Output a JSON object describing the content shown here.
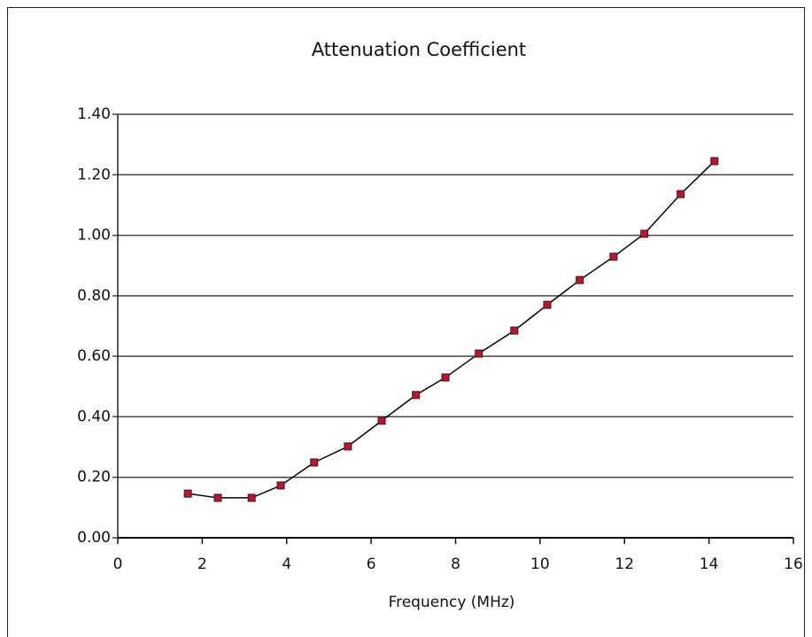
{
  "chart_data": {
    "type": "line",
    "title": "Attenuation Coefficient",
    "x_label": "Frequency (MHz)",
    "x": [
      1.66,
      2.37,
      3.17,
      3.86,
      4.65,
      5.45,
      6.25,
      7.06,
      7.76,
      8.55,
      9.39,
      10.17,
      10.94,
      11.74,
      12.47,
      13.33,
      14.13
    ],
    "values": [
      0.146,
      0.132,
      0.132,
      0.173,
      0.249,
      0.302,
      0.387,
      0.472,
      0.53,
      0.609,
      0.685,
      0.77,
      0.852,
      0.929,
      1.005,
      1.136,
      1.245
    ],
    "color": "#c8102e",
    "line_color": "#000000",
    "xlim": [
      0,
      16
    ],
    "xticks": [
      0,
      2,
      4,
      6,
      8,
      10,
      12,
      14,
      16
    ],
    "ylim": [
      0,
      1.4
    ],
    "yticks": [
      {
        "value": 0,
        "label": "0.00"
      },
      {
        "value": 0.2,
        "label": "0.20"
      },
      {
        "value": 0.4,
        "label": "0.40"
      },
      {
        "value": 0.6,
        "label": "0.60"
      },
      {
        "value": 0.8,
        "label": "0.80"
      },
      {
        "value": 1.0,
        "label": "1.00"
      },
      {
        "value": 1.2,
        "label": "1.20"
      },
      {
        "value": 1.4,
        "label": "1.40"
      }
    ],
    "grid": true
  }
}
